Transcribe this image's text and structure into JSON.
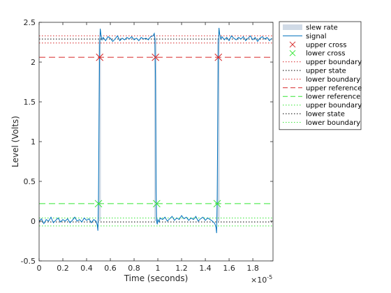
{
  "chart_data": {
    "type": "line",
    "xlabel": "Time (seconds)",
    "ylabel": "Level (Volts)",
    "x_exponent_label": "×10",
    "x_exponent": "-5",
    "xlim": [
      0,
      1.97
    ],
    "ylim": [
      -0.5,
      2.5
    ],
    "x_ticks": [
      "0",
      "0.2",
      "0.4",
      "0.6",
      "0.8",
      "1",
      "1.2",
      "1.4",
      "1.6",
      "1.8"
    ],
    "y_ticks": [
      "-0.5",
      "0",
      "0.5",
      "1",
      "1.5",
      "2",
      "2.5"
    ],
    "grid": false,
    "legend_position": "top-right",
    "reference_lines": {
      "upper_boundary_high": 2.33,
      "upper_state": 2.29,
      "upper_boundary_low": 2.24,
      "upper_reference": 2.06,
      "lower_reference": 0.22,
      "lower_boundary_high": 0.04,
      "lower_state": -0.01,
      "lower_boundary_low": -0.06
    },
    "slew_rate_bands": [
      {
        "x0": 0.5,
        "x1": 0.52
      },
      {
        "x0": 0.97,
        "x1": 0.99
      },
      {
        "x0": 1.5,
        "x1": 1.52
      }
    ],
    "upper_cross": {
      "x": [
        0.51,
        0.98,
        1.51
      ],
      "y": [
        2.06,
        2.06,
        2.06
      ]
    },
    "lower_cross": {
      "x": [
        0.5,
        0.99,
        1.5
      ],
      "y": [
        0.22,
        0.22,
        0.22
      ]
    },
    "signal": {
      "x": [
        0.0,
        0.02,
        0.04,
        0.06,
        0.08,
        0.1,
        0.12,
        0.14,
        0.16,
        0.18,
        0.2,
        0.22,
        0.24,
        0.26,
        0.28,
        0.3,
        0.32,
        0.34,
        0.36,
        0.38,
        0.4,
        0.42,
        0.44,
        0.46,
        0.48,
        0.49,
        0.495,
        0.5,
        0.505,
        0.51,
        0.515,
        0.52,
        0.53,
        0.54,
        0.56,
        0.58,
        0.6,
        0.62,
        0.64,
        0.66,
        0.68,
        0.7,
        0.72,
        0.74,
        0.76,
        0.78,
        0.8,
        0.82,
        0.84,
        0.86,
        0.88,
        0.9,
        0.92,
        0.94,
        0.96,
        0.97,
        0.975,
        0.98,
        0.985,
        0.99,
        0.995,
        1.0,
        1.01,
        1.02,
        1.04,
        1.06,
        1.08,
        1.1,
        1.12,
        1.14,
        1.16,
        1.18,
        1.2,
        1.22,
        1.24,
        1.26,
        1.28,
        1.3,
        1.32,
        1.34,
        1.36,
        1.38,
        1.4,
        1.42,
        1.44,
        1.46,
        1.48,
        1.49,
        1.495,
        1.5,
        1.505,
        1.51,
        1.515,
        1.52,
        1.53,
        1.54,
        1.56,
        1.58,
        1.6,
        1.62,
        1.64,
        1.66,
        1.68,
        1.7,
        1.72,
        1.74,
        1.76,
        1.78,
        1.8,
        1.82,
        1.84,
        1.86,
        1.88,
        1.9,
        1.92,
        1.94,
        1.96
      ],
      "y": [
        0.0,
        0.03,
        -0.03,
        0.02,
        0.0,
        0.05,
        -0.02,
        0.01,
        0.04,
        -0.01,
        0.02,
        0.0,
        0.03,
        -0.02,
        0.01,
        0.05,
        0.0,
        0.02,
        -0.01,
        0.04,
        0.01,
        0.03,
        -0.02,
        0.02,
        0.0,
        -0.05,
        -0.12,
        0.3,
        1.3,
        2.2,
        2.42,
        2.35,
        2.28,
        2.31,
        2.27,
        2.32,
        2.3,
        2.26,
        2.29,
        2.33,
        2.27,
        2.3,
        2.28,
        2.31,
        2.29,
        2.32,
        2.28,
        2.3,
        2.27,
        2.31,
        2.29,
        2.3,
        2.28,
        2.32,
        2.33,
        2.36,
        2.3,
        1.8,
        0.4,
        0.0,
        -0.04,
        0.02,
        -0.01,
        0.04,
        0.02,
        0.05,
        0.0,
        0.03,
        0.06,
        0.01,
        0.04,
        0.02,
        0.07,
        0.03,
        0.05,
        0.01,
        0.04,
        0.02,
        0.06,
        0.0,
        0.03,
        0.05,
        0.01,
        0.04,
        0.02,
        0.0,
        -0.03,
        -0.08,
        -0.15,
        0.3,
        1.3,
        2.2,
        2.43,
        2.36,
        2.29,
        2.32,
        2.28,
        2.31,
        2.27,
        2.33,
        2.3,
        2.28,
        2.31,
        2.29,
        2.32,
        2.27,
        2.3,
        2.33,
        2.28,
        2.31,
        2.26,
        2.3,
        2.32,
        2.29,
        2.31,
        2.27,
        2.3
      ]
    }
  },
  "legend": {
    "items": [
      {
        "label": "slew rate",
        "kind": "band",
        "color": "#d0dae6"
      },
      {
        "label": "signal",
        "kind": "line",
        "color": "#0072bd"
      },
      {
        "label": "upper cross",
        "kind": "xmark",
        "color": "#d62728"
      },
      {
        "label": "lower cross",
        "kind": "xmark",
        "color": "#33e633"
      },
      {
        "label": "upper boundary",
        "kind": "dotted",
        "color": "#d62728"
      },
      {
        "label": "upper state",
        "kind": "dotted",
        "color": "#000000"
      },
      {
        "label": "lower boundary",
        "kind": "dotted",
        "color": "#d62728"
      },
      {
        "label": "upper reference",
        "kind": "dashed",
        "color": "#d62728"
      },
      {
        "label": "lower reference",
        "kind": "dashed",
        "color": "#33e633"
      },
      {
        "label": "upper boundary",
        "kind": "dotted",
        "color": "#33e633"
      },
      {
        "label": "lower state",
        "kind": "dotted",
        "color": "#000000"
      },
      {
        "label": "lower boundary",
        "kind": "dotted",
        "color": "#33e633"
      }
    ]
  },
  "colors": {
    "axis": "#262626",
    "signal": "#0072bd",
    "upper": "#d62728",
    "lower": "#33e633",
    "state": "#000000",
    "band": "#d0dae6"
  }
}
